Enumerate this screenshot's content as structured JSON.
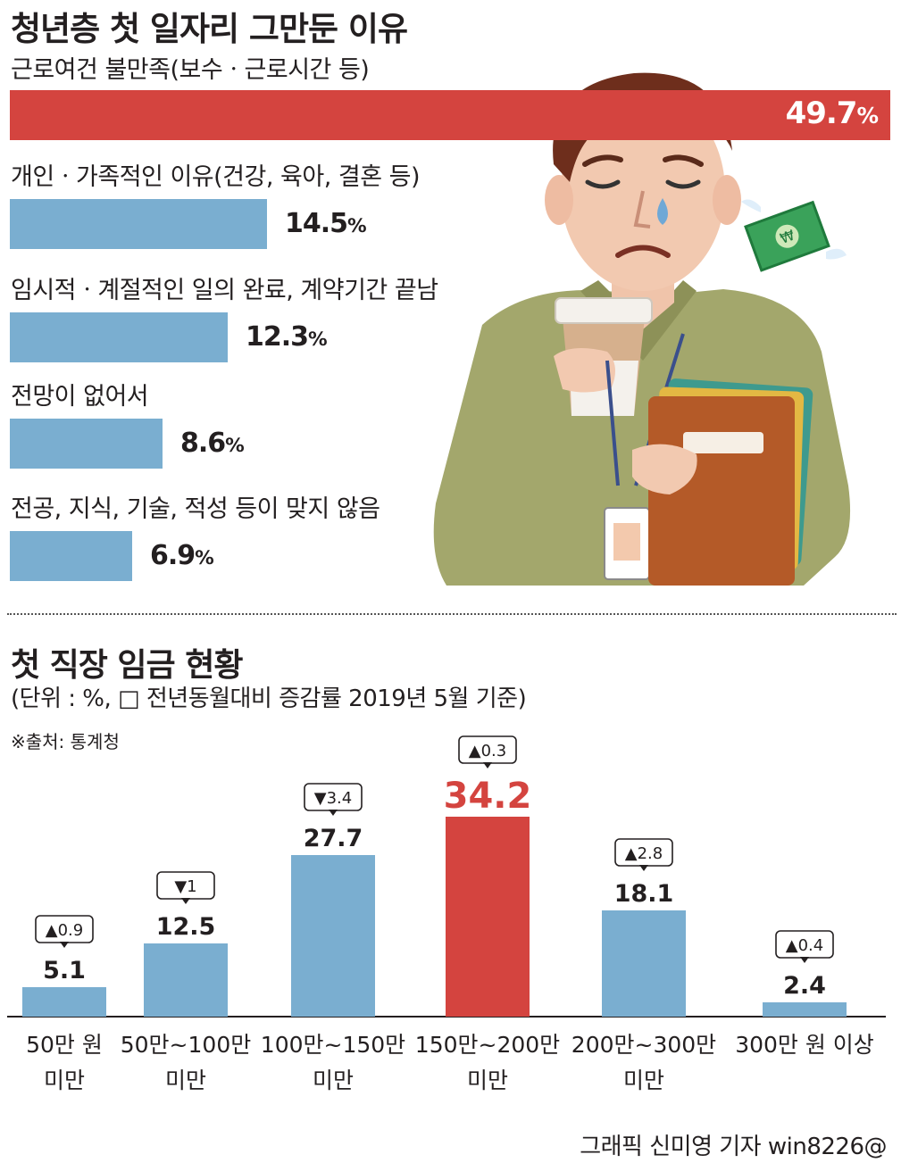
{
  "title": "청년층 첫 일자리 그만둔 이유",
  "reasons_chart": {
    "subtitle": "근로여건 불만족(보수ㆍ근로시간 등)",
    "unit": "%",
    "items": [
      {
        "label": "",
        "value": 49.7,
        "display": "49.7",
        "highlight": true
      },
      {
        "label": "개인ㆍ가족적인 이유(건강, 육아, 결혼 등)",
        "value": 14.5,
        "display": "14.5",
        "highlight": false
      },
      {
        "label": "임시적ㆍ계절적인 일의 완료, 계약기간 끝남",
        "value": 12.3,
        "display": "12.3",
        "highlight": false
      },
      {
        "label": "전망이 없어서",
        "value": 8.6,
        "display": "8.6",
        "highlight": false
      },
      {
        "label": "전공, 지식, 기술, 적성 등이 맞지 않음",
        "value": 6.9,
        "display": "6.9",
        "highlight": false
      }
    ]
  },
  "wage_chart": {
    "title": "첫 직장 임금 현황",
    "unit_note": "(단위 : %, □ 전년동월대비 증감률 2019년 5월 기준)",
    "source": "※출처: 통계청",
    "chart_data": {
      "type": "bar",
      "categories": [
        [
          "50만 원",
          "미만"
        ],
        [
          "50만~100만",
          "미만"
        ],
        [
          "100만~150만",
          "미만"
        ],
        [
          "150만~200만",
          "미만"
        ],
        [
          "200만~300만",
          "미만"
        ],
        [
          "300만 원 이상"
        ]
      ],
      "values": [
        5.1,
        12.5,
        27.7,
        34.2,
        18.1,
        2.4
      ],
      "value_labels": [
        "5.1",
        "12.5",
        "27.7",
        "34.2",
        "18.1",
        "2.4"
      ],
      "changes": [
        "▲0.9",
        "▼1",
        "▼3.4",
        "▲0.3",
        "▲2.8",
        "▲0.4"
      ],
      "highlight_index": 3,
      "ylim": [
        0,
        34.2
      ]
    }
  },
  "credit": "그래픽 신미영 기자 win8226@",
  "colors": {
    "red": "#d4443f",
    "blue": "#7aaed0",
    "text": "#231f20"
  }
}
